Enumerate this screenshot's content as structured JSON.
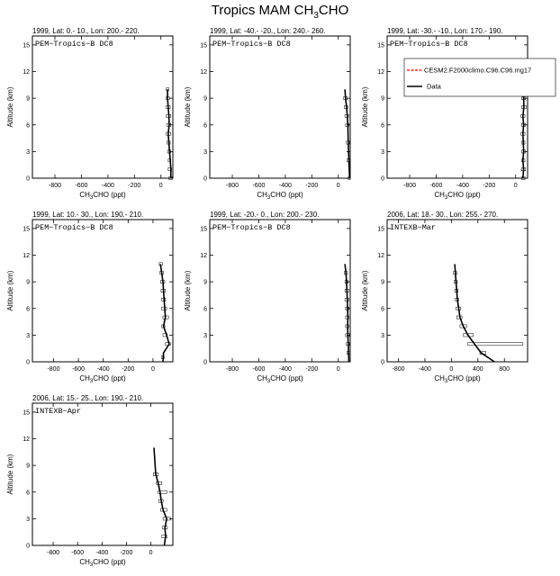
{
  "figure": {
    "title_prefix": "Tropics MAM CH",
    "title_sub": "3",
    "title_suffix": "CHO"
  },
  "legend": {
    "model_label": "CESM2.F2000climo.C96.C96.mg17",
    "obs_label": "Data",
    "model_color": "#ff0000",
    "obs_color": "#000000"
  },
  "chart_data": [
    {
      "type": "line",
      "header": "1999, Lat: 0.- 10., Lon: 200.- 220.",
      "campaign": "PEM−Tropics−B DC8",
      "xlabel_prefix": "CH",
      "xlabel_sub": "3",
      "xlabel_suffix": "CHO (ppt)",
      "ylabel": "Altitude (km)",
      "xlim": [
        -970,
        90
      ],
      "ylim": [
        0,
        16
      ],
      "xticks": [
        -800,
        -600,
        -400,
        -200,
        0
      ],
      "yticks": [
        0,
        3,
        6,
        9,
        12,
        15
      ],
      "has_legend": false,
      "series": [
        {
          "name": "Data",
          "points": [
            [
              75,
              0
            ],
            [
              75,
              1
            ],
            [
              70,
              2
            ],
            [
              65,
              3
            ],
            [
              60,
              4
            ],
            [
              55,
              5
            ],
            [
              62,
              6
            ],
            [
              60,
              7
            ],
            [
              55,
              8
            ],
            [
              50,
              9
            ],
            [
              50,
              10
            ]
          ]
        }
      ],
      "boxes": [
        [
          60,
          85,
          0.0
        ],
        [
          55,
          80,
          1.0
        ],
        [
          55,
          75,
          2.0
        ],
        [
          50,
          75,
          3.0
        ],
        [
          45,
          70,
          4.0
        ],
        [
          40,
          75,
          5.0
        ],
        [
          45,
          75,
          6.0
        ],
        [
          40,
          75,
          7.0
        ],
        [
          40,
          70,
          8.0
        ],
        [
          40,
          65,
          9.0
        ],
        [
          40,
          60,
          10.0
        ]
      ]
    },
    {
      "type": "line",
      "header": "1999, Lat: -40.- -20., Lon: 240.- 260.",
      "campaign": "PEM−Tropics−B DC8",
      "xlabel_prefix": "CH",
      "xlabel_sub": "3",
      "xlabel_suffix": "CHO (ppt)",
      "ylabel": "Altitude (km)",
      "xlim": [
        -970,
        90
      ],
      "ylim": [
        0,
        16
      ],
      "xticks": [
        -800,
        -600,
        -400,
        -200,
        0
      ],
      "yticks": [
        0,
        3,
        6,
        9,
        12,
        15
      ],
      "has_legend": false,
      "series": [
        {
          "name": "Data",
          "points": [
            [
              85,
              0
            ],
            [
              80,
              2
            ],
            [
              75,
              4
            ],
            [
              72,
              6
            ],
            [
              68,
              7
            ],
            [
              62,
              8
            ],
            [
              55,
              9
            ],
            [
              50,
              10
            ]
          ]
        }
      ],
      "boxes": [
        [
          75,
          90,
          0.0
        ],
        [
          65,
          88,
          2.0
        ],
        [
          60,
          85,
          4.0
        ],
        [
          55,
          80,
          6.0
        ],
        [
          50,
          78,
          7.0
        ],
        [
          45,
          72,
          8.0
        ],
        [
          40,
          68,
          9.0
        ]
      ]
    },
    {
      "type": "line",
      "header": "1999, Lat: -30.- -10., Lon: 170.- 190.",
      "campaign": "PEM−Tropics−B DC8",
      "xlabel_prefix": "CH",
      "xlabel_sub": "3",
      "xlabel_suffix": "CHO (ppt)",
      "ylabel": "Altitude (km)",
      "xlim": [
        -970,
        90
      ],
      "ylim": [
        0,
        16
      ],
      "xticks": [
        -800,
        -600,
        -400,
        -200,
        0
      ],
      "yticks": [
        0,
        3,
        6,
        9,
        12,
        15
      ],
      "has_legend": true,
      "series": [
        {
          "name": "Data",
          "points": [
            [
              55,
              0
            ],
            [
              60,
              1
            ],
            [
              55,
              2
            ],
            [
              60,
              3
            ],
            [
              58,
              4
            ],
            [
              55,
              5
            ],
            [
              60,
              6
            ],
            [
              55,
              7
            ],
            [
              62,
              8
            ],
            [
              60,
              9
            ],
            [
              55,
              10
            ],
            [
              45,
              11
            ]
          ]
        }
      ],
      "boxes": [
        [
          45,
          70,
          0.0
        ],
        [
          45,
          75,
          1.0
        ],
        [
          45,
          70,
          2.0
        ],
        [
          45,
          75,
          3.0
        ],
        [
          45,
          70,
          4.0
        ],
        [
          40,
          70,
          5.0
        ],
        [
          45,
          75,
          6.0
        ],
        [
          40,
          70,
          7.0
        ],
        [
          45,
          80,
          8.0
        ],
        [
          45,
          75,
          9.0
        ],
        [
          40,
          70,
          10.0
        ]
      ]
    },
    {
      "type": "line",
      "header": "1999, Lat: 10.- 30., Lon: 190.- 210.",
      "campaign": "PEM−Tropics−B DC8",
      "xlabel_prefix": "CH",
      "xlabel_sub": "3",
      "xlabel_suffix": "CHO (ppt)",
      "ylabel": "Altitude (km)",
      "xlim": [
        -970,
        160
      ],
      "ylim": [
        0,
        16
      ],
      "xticks": [
        -800,
        -600,
        -400,
        -200,
        0
      ],
      "yticks": [
        0,
        3,
        6,
        9,
        12,
        15
      ],
      "has_legend": false,
      "series": [
        {
          "name": "Data",
          "points": [
            [
              80,
              0
            ],
            [
              85,
              1
            ],
            [
              130,
              2
            ],
            [
              110,
              3
            ],
            [
              85,
              4
            ],
            [
              100,
              5
            ],
            [
              95,
              6
            ],
            [
              90,
              7
            ],
            [
              85,
              8
            ],
            [
              80,
              9
            ],
            [
              70,
              10
            ],
            [
              60,
              11
            ]
          ]
        }
      ],
      "boxes": [
        [
          70,
          90,
          0.5
        ],
        [
          100,
          140,
          2.0
        ],
        [
          80,
          115,
          3.0
        ],
        [
          70,
          95,
          4.0
        ],
        [
          80,
          125,
          5.0
        ],
        [
          70,
          110,
          6.0
        ],
        [
          70,
          100,
          7.0
        ],
        [
          65,
          100,
          8.0
        ],
        [
          60,
          95,
          9.0
        ],
        [
          55,
          85,
          10.0
        ],
        [
          50,
          75,
          11.0
        ]
      ]
    },
    {
      "type": "line",
      "header": "1999, Lat: -20.- 0., Lon: 200.- 230.",
      "campaign": "PEM−Tropics−B DC8",
      "xlabel_prefix": "CH",
      "xlabel_sub": "3",
      "xlabel_suffix": "CHO (ppt)",
      "ylabel": "Altitude (km)",
      "xlim": [
        -970,
        90
      ],
      "ylim": [
        0,
        16
      ],
      "xticks": [
        -800,
        -600,
        -400,
        -200,
        0
      ],
      "yticks": [
        0,
        3,
        6,
        9,
        12,
        15
      ],
      "has_legend": false,
      "series": [
        {
          "name": "Data",
          "points": [
            [
              80,
              0
            ],
            [
              78,
              1
            ],
            [
              75,
              2
            ],
            [
              72,
              3
            ],
            [
              70,
              4
            ],
            [
              72,
              5
            ],
            [
              70,
              6
            ],
            [
              68,
              7
            ],
            [
              65,
              8
            ],
            [
              62,
              9
            ],
            [
              58,
              10
            ],
            [
              50,
              11
            ]
          ]
        }
      ],
      "boxes": [
        [
          65,
          90,
          1.0
        ],
        [
          60,
          85,
          2.0
        ],
        [
          55,
          85,
          3.0
        ],
        [
          55,
          80,
          4.0
        ],
        [
          55,
          80,
          5.0
        ],
        [
          55,
          80,
          6.0
        ],
        [
          50,
          80,
          7.0
        ],
        [
          50,
          80,
          8.0
        ],
        [
          50,
          75,
          9.0
        ],
        [
          45,
          70,
          10.0
        ]
      ]
    },
    {
      "type": "line",
      "header": "2006, Lat: 18.- 30., Lon: 255.- 270.",
      "campaign": "INTEXB−Mar",
      "xlabel_prefix": "CH",
      "xlabel_sub": "3",
      "xlabel_suffix": "CHO (ppt)",
      "ylabel": "Altitude (km)",
      "xlim": [
        -970,
        1150
      ],
      "ylim": [
        0,
        16
      ],
      "xticks": [
        -800,
        -400,
        0,
        400,
        800
      ],
      "yticks": [
        0,
        3,
        6,
        9,
        12,
        15
      ],
      "has_legend": false,
      "series": [
        {
          "name": "Data",
          "points": [
            [
              650,
              0
            ],
            [
              450,
              1
            ],
            [
              350,
              2
            ],
            [
              250,
              3
            ],
            [
              180,
              4
            ],
            [
              130,
              5
            ],
            [
              110,
              6
            ],
            [
              90,
              7
            ],
            [
              80,
              8
            ],
            [
              70,
              9
            ],
            [
              60,
              10
            ],
            [
              50,
              11
            ]
          ]
        }
      ],
      "boxes": [
        [
          430,
          520,
          1.0
        ],
        [
          250,
          1080,
          2.0
        ],
        [
          180,
          330,
          3.0
        ],
        [
          130,
          230,
          4.0
        ],
        [
          80,
          160,
          5.0
        ],
        [
          70,
          140,
          6.0
        ],
        [
          60,
          110,
          7.0
        ],
        [
          50,
          100,
          8.0
        ],
        [
          40,
          90,
          9.0
        ],
        [
          30,
          80,
          10.0
        ]
      ]
    },
    {
      "type": "line",
      "header": "2006, Lat: 15.- 25., Lon: 190.- 210.",
      "campaign": "INTEXB−Apr",
      "xlabel_prefix": "CH",
      "xlabel_sub": "3",
      "xlabel_suffix": "CHO (ppt)",
      "ylabel": "Altitude (km)",
      "xlim": [
        -970,
        180
      ],
      "ylim": [
        0,
        16
      ],
      "xticks": [
        -800,
        -600,
        -400,
        -200,
        0
      ],
      "yticks": [
        0,
        3,
        6,
        9,
        12,
        15
      ],
      "has_legend": false,
      "series": [
        {
          "name": "Data",
          "points": [
            [
              110,
              0
            ],
            [
              120,
              1
            ],
            [
              115,
              2
            ],
            [
              130,
              3
            ],
            [
              100,
              4
            ],
            [
              85,
              5
            ],
            [
              75,
              6
            ],
            [
              60,
              7
            ],
            [
              40,
              8
            ],
            [
              35,
              9
            ],
            [
              30,
              10
            ],
            [
              25,
              11
            ]
          ]
        }
      ],
      "boxes": [
        [
          90,
          130,
          1.0
        ],
        [
          95,
          135,
          2.0
        ],
        [
          100,
          160,
          3.0
        ],
        [
          80,
          130,
          4.0
        ],
        [
          65,
          100,
          5.0
        ],
        [
          60,
          130,
          6.0
        ],
        [
          45,
          90,
          7.0
        ],
        [
          20,
          60,
          8.0
        ]
      ]
    }
  ]
}
